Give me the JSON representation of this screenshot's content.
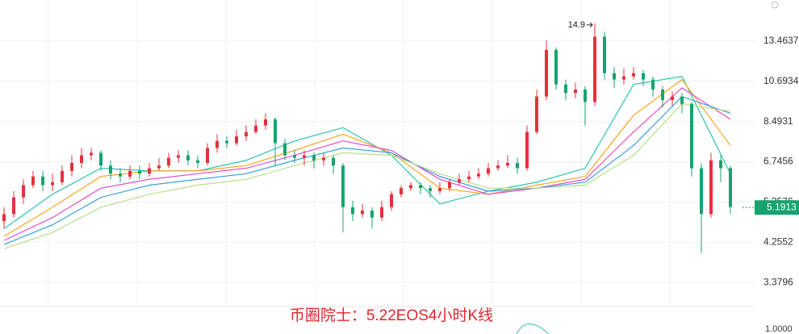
{
  "chart_data": {
    "type": "candlestick",
    "title": "币圈院士：5.22EOS4小时K线",
    "log_scale": true,
    "grid": true,
    "ylim": [
      2.944,
      17.03
    ],
    "yticks": [
      13.4637,
      10.6934,
      8.4931,
      6.7456,
      5.3576,
      4.2552,
      3.3796
    ],
    "up_color": "#e5303f",
    "down_color": "#17a36f",
    "candles": {
      "open": [
        4.8,
        5.0,
        5.5,
        5.9,
        6.2,
        5.9,
        6.0,
        6.4,
        6.7,
        7.0,
        7.1,
        6.6,
        6.3,
        6.2,
        6.4,
        6.3,
        6.5,
        6.6,
        6.9,
        7.0,
        6.8,
        6.7,
        7.3,
        7.6,
        7.5,
        7.8,
        8.0,
        8.3,
        8.6,
        7.5,
        7.0,
        6.9,
        7.0,
        6.8,
        6.9,
        6.6,
        5.2,
        5.0,
        5.1,
        4.9,
        5.2,
        5.6,
        5.8,
        5.9,
        5.8,
        5.7,
        5.8,
        6.0,
        6.1,
        6.2,
        6.3,
        6.5,
        6.6,
        6.7,
        6.5,
        8.0,
        9.8,
        12.8,
        10.5,
        10.0,
        10.2,
        9.5,
        13.8,
        11.2,
        10.8,
        11.0,
        11.2,
        10.8,
        10.2,
        9.6,
        9.8,
        9.4,
        6.5,
        5.0,
        6.8,
        6.5
      ],
      "high": [
        5.2,
        5.7,
        6.1,
        6.4,
        6.4,
        6.3,
        6.6,
        7.0,
        7.3,
        7.3,
        7.2,
        6.8,
        6.5,
        6.6,
        6.6,
        6.7,
        6.9,
        7.1,
        7.2,
        7.2,
        7.0,
        7.5,
        7.9,
        7.8,
        8.1,
        8.3,
        8.6,
        8.9,
        8.7,
        7.7,
        7.2,
        7.2,
        7.1,
        7.1,
        7.0,
        6.7,
        5.4,
        5.3,
        5.2,
        5.4,
        5.7,
        5.9,
        6.0,
        6.0,
        5.9,
        6.0,
        6.1,
        6.3,
        6.4,
        6.5,
        6.7,
        6.8,
        7.0,
        6.9,
        8.3,
        10.2,
        13.5,
        13.0,
        10.8,
        10.6,
        10.4,
        14.9,
        14.2,
        11.6,
        11.5,
        11.6,
        11.4,
        11.0,
        10.4,
        10.1,
        10.0,
        9.5,
        6.7,
        7.1,
        7.0,
        6.6
      ],
      "low": [
        4.6,
        4.9,
        5.3,
        5.8,
        5.7,
        5.7,
        5.9,
        6.2,
        6.5,
        6.8,
        6.4,
        6.1,
        6.0,
        6.1,
        6.1,
        6.2,
        6.4,
        6.5,
        6.7,
        6.6,
        6.5,
        6.6,
        7.1,
        7.3,
        7.4,
        7.6,
        7.9,
        8.1,
        6.6,
        6.8,
        6.7,
        6.6,
        6.5,
        6.6,
        6.3,
        4.5,
        4.8,
        4.9,
        4.6,
        4.8,
        5.1,
        5.5,
        5.7,
        5.6,
        5.5,
        5.6,
        5.7,
        5.9,
        6.0,
        6.1,
        6.2,
        6.4,
        6.5,
        6.3,
        6.4,
        7.9,
        9.6,
        10.2,
        9.6,
        9.7,
        8.3,
        9.3,
        10.8,
        10.3,
        10.5,
        10.8,
        10.4,
        9.8,
        9.2,
        9.3,
        8.9,
        6.2,
        4.0,
        4.9,
        6.0,
        5.0
      ],
      "close": [
        5.0,
        5.5,
        5.9,
        6.2,
        5.9,
        6.0,
        6.4,
        6.7,
        7.0,
        7.1,
        6.6,
        6.3,
        6.2,
        6.4,
        6.3,
        6.5,
        6.6,
        6.9,
        7.0,
        6.8,
        6.7,
        7.3,
        7.6,
        7.5,
        7.8,
        8.0,
        8.3,
        8.6,
        7.5,
        7.0,
        6.9,
        7.0,
        6.8,
        6.9,
        6.6,
        5.2,
        5.0,
        5.1,
        4.9,
        5.2,
        5.6,
        5.8,
        5.9,
        5.8,
        5.7,
        5.8,
        6.0,
        6.1,
        6.2,
        6.3,
        6.5,
        6.6,
        6.7,
        6.5,
        8.0,
        9.8,
        12.8,
        10.5,
        10.0,
        10.2,
        9.5,
        13.8,
        11.2,
        10.8,
        11.0,
        11.2,
        10.8,
        10.2,
        9.6,
        9.8,
        9.4,
        6.5,
        5.0,
        6.8,
        6.5,
        5.2
      ]
    },
    "max_marker_index": 61,
    "series": [
      {
        "color": "#2cc4b0",
        "x": [
          0,
          5,
          10,
          15,
          20,
          25,
          30,
          35,
          40,
          45,
          50,
          55,
          60,
          65,
          70,
          75
        ],
        "values": [
          4.6,
          5.6,
          6.5,
          6.4,
          6.4,
          6.8,
          7.6,
          8.2,
          7.0,
          5.3,
          5.7,
          6.0,
          6.5,
          10.5,
          11.0,
          6.3
        ]
      },
      {
        "color": "#f5a623",
        "x": [
          0,
          5,
          10,
          15,
          20,
          25,
          30,
          35,
          40,
          45,
          50,
          55,
          60,
          65,
          70,
          75
        ],
        "values": [
          4.4,
          5.2,
          6.2,
          6.4,
          6.4,
          6.6,
          7.2,
          7.9,
          7.1,
          5.8,
          5.6,
          5.9,
          6.2,
          8.8,
          10.8,
          7.4
        ]
      },
      {
        "color": "#e54fc6",
        "x": [
          0,
          5,
          10,
          15,
          20,
          25,
          30,
          35,
          40,
          45,
          50,
          55,
          60,
          65,
          70,
          75
        ],
        "values": [
          4.3,
          4.9,
          5.8,
          6.1,
          6.3,
          6.5,
          7.0,
          7.6,
          7.2,
          6.1,
          5.6,
          5.8,
          6.1,
          8.0,
          10.3,
          8.6
        ]
      },
      {
        "color": "#3aa0e0",
        "x": [
          0,
          5,
          10,
          15,
          20,
          25,
          30,
          35,
          40,
          45,
          50,
          55,
          60,
          65,
          70,
          75
        ],
        "values": [
          4.2,
          4.7,
          5.5,
          5.9,
          6.1,
          6.3,
          6.8,
          7.3,
          7.1,
          6.2,
          5.7,
          5.8,
          6.0,
          7.4,
          9.8,
          8.9
        ]
      },
      {
        "color": "#b5e08a",
        "x": [
          0,
          5,
          10,
          15,
          20,
          25,
          30,
          35,
          40,
          45,
          50,
          55,
          60,
          65,
          70,
          75
        ],
        "values": [
          4.1,
          4.5,
          5.2,
          5.6,
          5.9,
          6.1,
          6.6,
          7.1,
          7.0,
          6.3,
          5.8,
          5.8,
          5.9,
          7.0,
          9.4,
          9.0
        ]
      }
    ],
    "last_price": 5.1913,
    "last_price_color": "#17a36f",
    "lower_panel_tick": "1.0000"
  }
}
